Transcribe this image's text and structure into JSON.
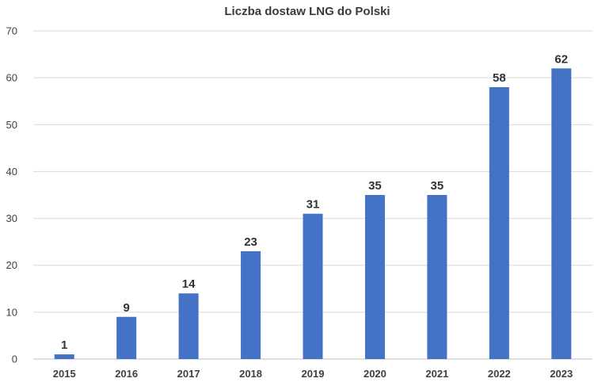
{
  "chart_data": {
    "type": "bar",
    "title": "Liczba dostaw LNG do Polski",
    "categories": [
      "2015",
      "2016",
      "2017",
      "2018",
      "2019",
      "2020",
      "2021",
      "2022",
      "2023"
    ],
    "values": [
      1,
      9,
      14,
      23,
      31,
      35,
      35,
      58,
      62
    ],
    "ylim": [
      0,
      70
    ],
    "yticks": [
      0,
      10,
      20,
      30,
      40,
      50,
      60,
      70
    ],
    "grid": true,
    "legend": "none",
    "bar_color": "#4472C4",
    "data_labels": true
  }
}
